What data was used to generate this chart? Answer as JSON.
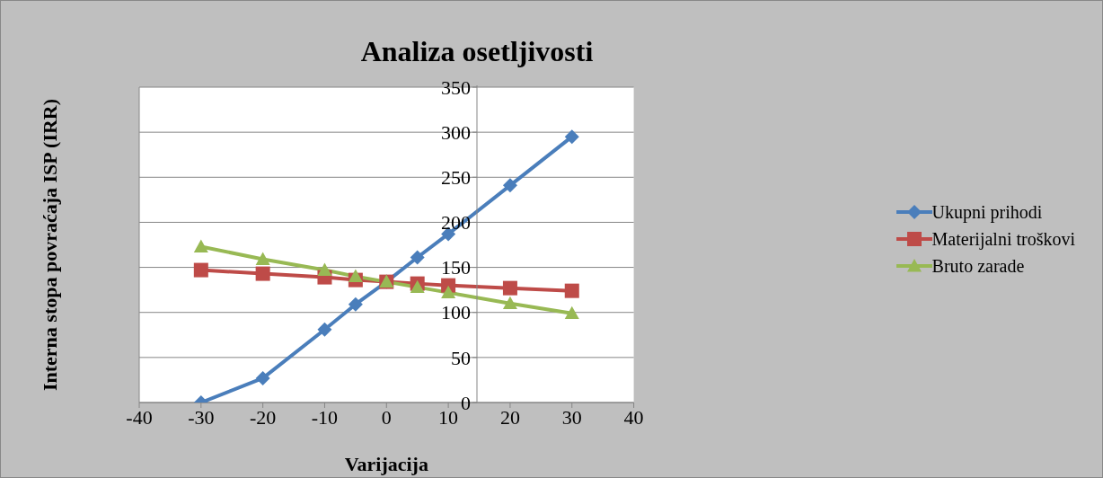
{
  "chart_data": {
    "type": "line",
    "title": "Analiza osetljivosti",
    "xlabel": "Varijacija",
    "ylabel": "Interna stopa povraćaja ISP (IRR)",
    "x": [
      -30,
      -20,
      -10,
      -5,
      0,
      5,
      10,
      20,
      30
    ],
    "series": [
      {
        "name": "Ukupni prihodi",
        "color": "#4a7ebb",
        "marker": "diamond",
        "values": [
          0,
          27,
          81,
          109,
          134,
          161,
          187,
          241,
          295
        ]
      },
      {
        "name": "Materijalni troškovi",
        "color": "#be4b48",
        "marker": "square",
        "values": [
          147,
          143,
          139,
          136,
          134,
          132,
          130,
          127,
          124
        ]
      },
      {
        "name": "Bruto zarade",
        "color": "#98b954",
        "marker": "triangle",
        "values": [
          173,
          159,
          147,
          140,
          134,
          128,
          122,
          110,
          99
        ]
      }
    ],
    "xlim": [
      -40,
      40
    ],
    "xticks": [
      -40,
      -30,
      -20,
      -10,
      0,
      10,
      20,
      30,
      40
    ],
    "ylim": [
      0,
      350
    ],
    "yticks": [
      0,
      50,
      100,
      150,
      200,
      250,
      300,
      350
    ],
    "grid": "y",
    "legend": "right"
  }
}
